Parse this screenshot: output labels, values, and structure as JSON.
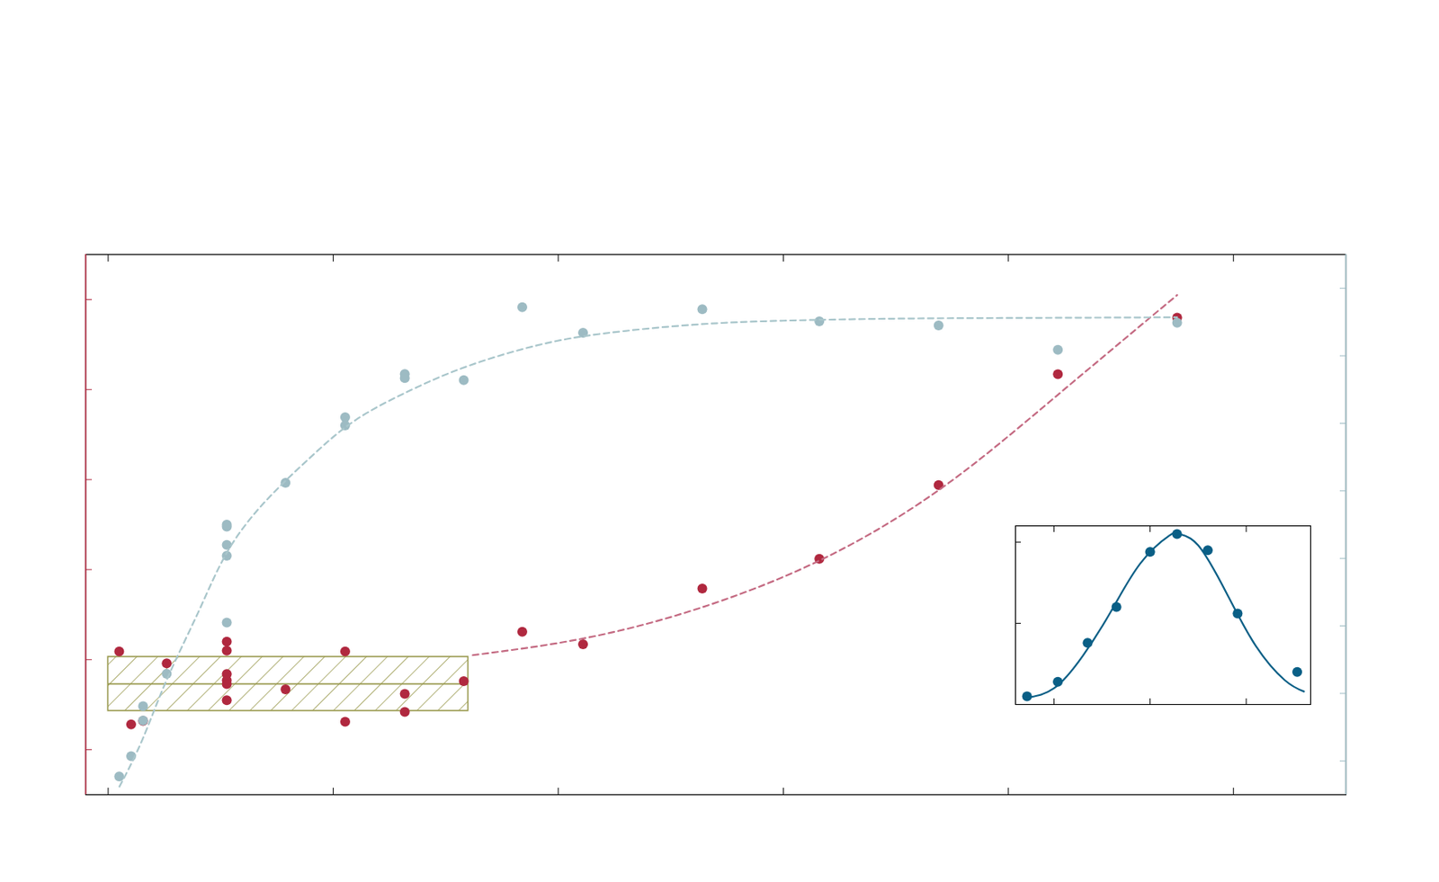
{
  "chart_data": [
    {
      "type": "scatter",
      "tick_labels": false,
      "grid": false,
      "xlim": [
        -1,
        55
      ],
      "xticks": [
        0,
        10,
        20,
        30,
        40,
        50
      ],
      "ylim": [
        -5,
        55
      ],
      "yticks": [
        0,
        10,
        20,
        30,
        40,
        50
      ],
      "y2lim": [
        -5,
        75
      ],
      "y2ticks": [
        0,
        10,
        20,
        30,
        40,
        50,
        60,
        70
      ],
      "band": {
        "x": [
          0,
          16
        ],
        "y": [
          4.3,
          10.3
        ],
        "mid": 7.3,
        "color": "#9a9a50"
      },
      "series": [
        {
          "type": "scatter",
          "axis": "y",
          "color": "#b0283f",
          "marker": "circle",
          "x": [
            0.49,
            1.02,
            1.55,
            2.6,
            5.27,
            5.27,
            5.27,
            5.27,
            5.27,
            5.27,
            7.88,
            10.53,
            10.53,
            13.18,
            13.18,
            15.8,
            18.4,
            21.1,
            26.4,
            31.6,
            36.9,
            42.2,
            47.5
          ],
          "values": [
            10.9,
            2.8,
            3.2,
            9.6,
            12.0,
            11.0,
            8.4,
            7.7,
            7.3,
            5.5,
            6.7,
            10.9,
            3.1,
            6.2,
            4.2,
            7.6,
            13.1,
            11.7,
            17.9,
            21.2,
            29.4,
            41.7,
            48.0
          ]
        },
        {
          "type": "line",
          "axis": "y",
          "color": "#c46a82",
          "line_style": "dashed",
          "x": [
            16.2,
            21,
            26,
            31.6,
            37,
            42,
            47.5
          ],
          "values": [
            10.5,
            12.3,
            15.5,
            21,
            29,
            39,
            50.5
          ]
        },
        {
          "type": "scatter",
          "axis": "y2",
          "color": "#9dbbc3",
          "marker": "circle",
          "x": [
            0.49,
            1.02,
            1.55,
            1.55,
            2.6,
            5.27,
            5.27,
            5.27,
            5.27,
            5.27,
            7.88,
            10.53,
            10.53,
            13.18,
            13.18,
            15.8,
            18.4,
            21.1,
            26.4,
            31.6,
            36.9,
            42.2,
            47.5
          ],
          "values": [
            -2.3,
            0.7,
            8.1,
            6.0,
            12.9,
            20.5,
            30.4,
            32.0,
            35.0,
            34.7,
            41.2,
            50.9,
            49.7,
            57.3,
            56.7,
            56.4,
            67.2,
            63.4,
            66.9,
            65.1,
            64.5,
            60.9,
            64.9
          ]
        },
        {
          "type": "line",
          "axis": "y2",
          "color": "#a9c6cb",
          "line_style": "dashed",
          "x": [
            0.5,
            1.5,
            2.6,
            4,
            5.3,
            7,
            9,
            11,
            13.5,
            16,
            19,
            22,
            26,
            30,
            35,
            40,
            47.5
          ],
          "values": [
            -3.8,
            3,
            12,
            22,
            31,
            38.5,
            45,
            50.5,
            55,
            58.5,
            61.5,
            63.3,
            64.6,
            65.2,
            65.5,
            65.6,
            65.7
          ]
        }
      ]
    },
    {
      "type": "line",
      "tick_labels": false,
      "grid": false,
      "xlim": [
        6,
        36.7
      ],
      "xticks": [
        10,
        20,
        30
      ],
      "ylim": [
        0,
        1.1
      ],
      "yticks": [
        0,
        0.5,
        1
      ],
      "series": [
        {
          "type": "scatter",
          "color": "#0a5f86",
          "marker": "circle",
          "x": [
            7.2,
            10.4,
            13.5,
            16.5,
            20,
            22.8,
            26,
            29.1,
            35.3
          ],
          "values": [
            0.05,
            0.14,
            0.38,
            0.6,
            0.94,
            1.05,
            0.95,
            0.56,
            0.2
          ]
        },
        {
          "type": "line",
          "color": "#0a5f86",
          "line_style": "solid",
          "x": [
            7,
            10,
            13,
            16,
            19,
            22,
            23,
            25,
            28,
            31,
            34,
            36
          ],
          "values": [
            0.04,
            0.1,
            0.3,
            0.58,
            0.87,
            1.04,
            1.05,
            0.98,
            0.68,
            0.36,
            0.15,
            0.08
          ]
        }
      ]
    }
  ]
}
